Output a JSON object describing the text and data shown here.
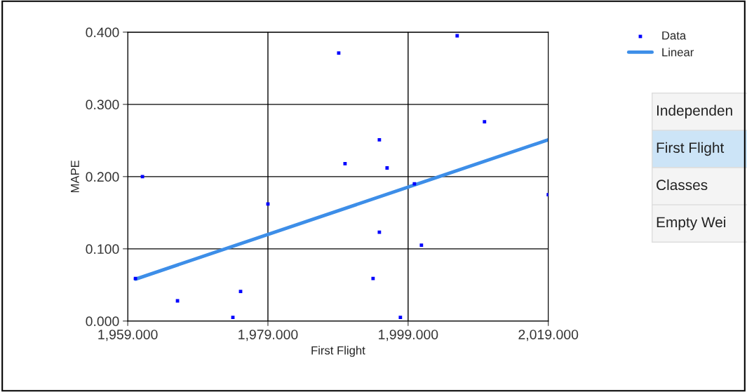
{
  "chart_data": {
    "type": "scatter",
    "xlabel": "First Flight",
    "ylabel": "MAPE",
    "series": [
      {
        "name": "Data",
        "color": "#0000ff",
        "marker": "square",
        "x": [
          1960.1,
          1961.1,
          1966.1,
          1974.0,
          1975.1,
          1979.0,
          1989.1,
          1990.0,
          1994.0,
          1994.9,
          1994.9,
          1996.0,
          1997.9,
          1999.9,
          2000.9,
          2006.0,
          2009.9,
          2019.0
        ],
        "values": [
          0.059,
          0.2,
          0.028,
          0.005,
          0.041,
          0.162,
          0.371,
          0.218,
          0.059,
          0.251,
          0.123,
          0.212,
          0.005,
          0.19,
          0.105,
          0.395,
          0.276,
          0.175
        ]
      },
      {
        "name": "Linear",
        "type": "line",
        "color": "#3d8ee8",
        "x": [
          1960.1,
          2019.0
        ],
        "values": [
          0.058,
          0.251
        ]
      }
    ],
    "xlim": [
      1959,
      2019
    ],
    "ylim": [
      0,
      0.4
    ],
    "xticks": [
      {
        "value": 1959,
        "label": "1,959.000"
      },
      {
        "value": 1979,
        "label": "1,979.000"
      },
      {
        "value": 1999,
        "label": "1,999.000"
      },
      {
        "value": 2019,
        "label": "2,019.000"
      }
    ],
    "yticks": [
      {
        "value": 0,
        "label": "0.000"
      },
      {
        "value": 0.1,
        "label": "0.100"
      },
      {
        "value": 0.2,
        "label": "0.200"
      },
      {
        "value": 0.3,
        "label": "0.300"
      },
      {
        "value": 0.4,
        "label": "0.400"
      }
    ],
    "grid": true,
    "legend": "top right",
    "annotations": [
      "Independen",
      "First Flight",
      "Classes",
      "Empty Wei"
    ]
  }
}
